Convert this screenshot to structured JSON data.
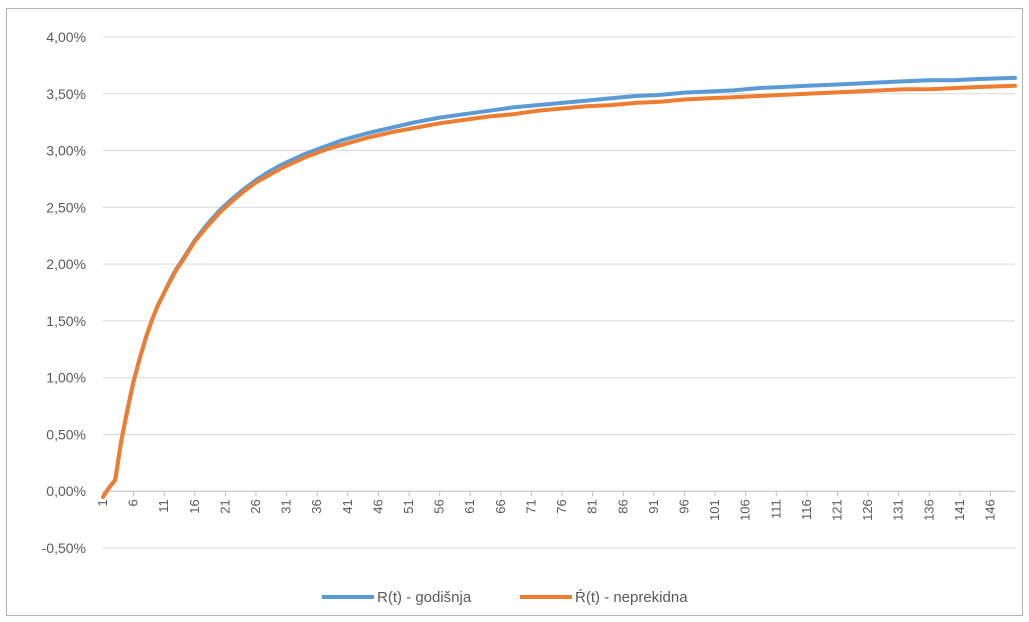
{
  "chart_data": {
    "type": "line",
    "title": "",
    "xlabel": "",
    "ylabel": "",
    "x_range": [
      1,
      150
    ],
    "x_tick_labels": [
      "1",
      "6",
      "11",
      "16",
      "21",
      "26",
      "31",
      "36",
      "41",
      "46",
      "51",
      "56",
      "61",
      "66",
      "71",
      "76",
      "81",
      "86",
      "91",
      "96",
      "101",
      "106",
      "111",
      "116",
      "121",
      "126",
      "131",
      "136",
      "141",
      "146"
    ],
    "ylim": [
      -0.005,
      0.04
    ],
    "y_tick_labels": [
      "-0,50%",
      "0,00%",
      "0,50%",
      "1,00%",
      "1,50%",
      "2,00%",
      "2,50%",
      "3,00%",
      "3,50%",
      "4,00%"
    ],
    "y_tick_values": [
      -0.005,
      0,
      0.005,
      0.01,
      0.015,
      0.02,
      0.025,
      0.03,
      0.035,
      0.04
    ],
    "grid": "horizontal",
    "legend_position": "bottom",
    "series": [
      {
        "name": "R(t) - godišnja",
        "color": "#5b9bd5",
        "x": [
          1,
          2,
          3,
          4,
          5,
          6,
          7,
          8,
          9,
          10,
          11,
          12,
          13,
          14,
          16,
          18,
          20,
          22,
          24,
          26,
          28,
          30,
          32,
          34,
          36,
          38,
          40,
          44,
          48,
          52,
          56,
          60,
          64,
          68,
          72,
          76,
          80,
          84,
          88,
          92,
          96,
          100,
          104,
          108,
          112,
          116,
          120,
          124,
          128,
          132,
          136,
          140,
          144,
          150
        ],
        "values": [
          -0.0005,
          0.0003,
          0.001,
          0.0045,
          0.0072,
          0.0097,
          0.0117,
          0.0135,
          0.0151,
          0.0164,
          0.0175,
          0.0186,
          0.0196,
          0.0204,
          0.0221,
          0.0235,
          0.0247,
          0.0257,
          0.0266,
          0.0274,
          0.0281,
          0.0287,
          0.0292,
          0.0297,
          0.0301,
          0.0305,
          0.0309,
          0.0315,
          0.032,
          0.0325,
          0.0329,
          0.0332,
          0.0335,
          0.0338,
          0.034,
          0.0342,
          0.0344,
          0.0346,
          0.0348,
          0.0349,
          0.0351,
          0.0352,
          0.0353,
          0.0355,
          0.0356,
          0.0357,
          0.0358,
          0.0359,
          0.036,
          0.0361,
          0.0362,
          0.0362,
          0.0363,
          0.0364
        ]
      },
      {
        "name": "Ŕ(t) -  neprekidna",
        "color": "#ed7d31",
        "x": [
          1,
          2,
          3,
          4,
          5,
          6,
          7,
          8,
          9,
          10,
          11,
          12,
          13,
          14,
          16,
          18,
          20,
          22,
          24,
          26,
          28,
          30,
          32,
          34,
          36,
          38,
          40,
          44,
          48,
          52,
          56,
          60,
          64,
          68,
          72,
          76,
          80,
          84,
          88,
          92,
          96,
          100,
          104,
          108,
          112,
          116,
          120,
          124,
          128,
          132,
          136,
          140,
          144,
          150
        ],
        "values": [
          -0.0005,
          0.0003,
          0.001,
          0.0045,
          0.0072,
          0.0097,
          0.0117,
          0.0135,
          0.0151,
          0.0164,
          0.0175,
          0.0185,
          0.0195,
          0.0203,
          0.022,
          0.0233,
          0.0245,
          0.0255,
          0.0264,
          0.0272,
          0.0278,
          0.0284,
          0.0289,
          0.0294,
          0.0298,
          0.0302,
          0.0305,
          0.0311,
          0.0316,
          0.032,
          0.0324,
          0.0327,
          0.033,
          0.0332,
          0.0335,
          0.0337,
          0.0339,
          0.034,
          0.0342,
          0.0343,
          0.0345,
          0.0346,
          0.0347,
          0.0348,
          0.0349,
          0.035,
          0.0351,
          0.0352,
          0.0353,
          0.0354,
          0.0354,
          0.0355,
          0.0356,
          0.0357
        ]
      }
    ]
  }
}
